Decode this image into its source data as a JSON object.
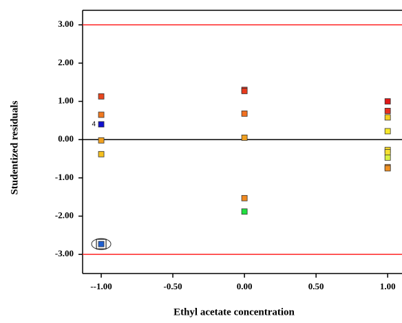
{
  "chart_data": {
    "type": "scatter",
    "xlabel": "Ethyl acetate concentration",
    "ylabel": "Studentized residuals",
    "x": [
      -1,
      -1,
      -1,
      -1,
      -1,
      -1,
      0,
      0,
      0,
      0,
      0,
      0,
      1,
      1,
      1,
      1,
      1,
      1,
      1,
      1,
      1
    ],
    "values": [
      1.13,
      0.65,
      0.4,
      -0.02,
      -0.38,
      -2.73,
      1.3,
      1.27,
      0.68,
      0.05,
      -1.53,
      -1.88,
      1.0,
      0.75,
      0.58,
      0.22,
      -0.27,
      -0.33,
      -0.47,
      -0.72,
      -0.75
    ],
    "colors": [
      "#e8461e",
      "#f07820",
      "#1010d0",
      "#f0a020",
      "#f5c020",
      "#2060d0",
      "#e02818",
      "#e83a1c",
      "#f07020",
      "#f0a020",
      "#f08a20",
      "#20e040",
      "#e01818",
      "#e83020",
      "#f5d020",
      "#f8e828",
      "#f5d828",
      "#f5e030",
      "#d8f040",
      "#f08a20",
      "#f09020"
    ],
    "annotation": "4",
    "xlim": [
      -1.13,
      1.1
    ],
    "ylim": [
      -3.5,
      3.38
    ],
    "xticks": [
      {
        "value": -1,
        "label": "--1.00"
      },
      {
        "value": -0.5,
        "label": "-0.50"
      },
      {
        "value": 0,
        "label": "0.00"
      },
      {
        "value": 0.5,
        "label": "0.50"
      },
      {
        "value": 1,
        "label": "1.00"
      }
    ],
    "yticks": [
      {
        "value": 3,
        "label": "3.00"
      },
      {
        "value": 2,
        "label": "2.00"
      },
      {
        "value": 1,
        "label": "1.00"
      },
      {
        "value": 0,
        "label": "0.00"
      },
      {
        "value": -1,
        "label": "-1.00"
      },
      {
        "value": -2,
        "label": "-2.00"
      },
      {
        "value": -3,
        "label": "-3.00"
      }
    ],
    "hlines": [
      {
        "value": 3,
        "color": "#ff2020"
      },
      {
        "value": 0,
        "color": "#000000"
      },
      {
        "value": -3,
        "color": "#ff2020"
      }
    ]
  }
}
